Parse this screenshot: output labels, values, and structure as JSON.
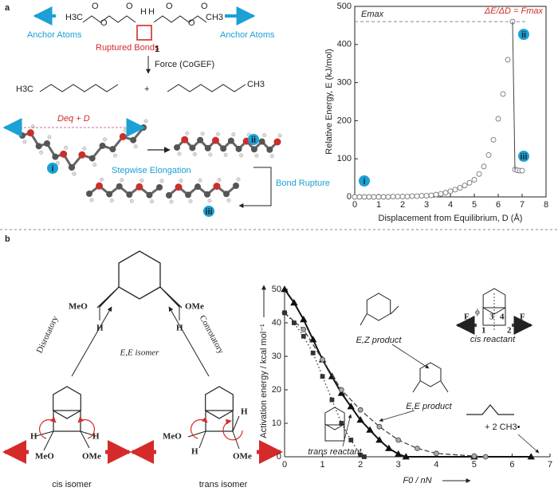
{
  "panel_a": {
    "label": "a",
    "methyl_left": "H3C",
    "methyl_right": "CH3",
    "oxygen": "O",
    "hydrogen": "H",
    "anchor_left": "Anchor Atoms",
    "anchor_right": "Anchor Atoms",
    "ruptured": "Ruptured Bonds",
    "compound": "1",
    "force": "Force (CoGEF)",
    "plus": "+",
    "distance": "Deq + D",
    "elongation": "Stepwise Elongation",
    "rupture": "Bond Rupture",
    "states": [
      "i",
      "ii",
      "iii"
    ]
  },
  "panel_b": {
    "label": "b",
    "substituent_left": "MeO",
    "substituent_right": "OMe",
    "hydrogen": "H",
    "product": "E,E isomer",
    "path_left": "Disrotatory",
    "path_right": "Conrotatory",
    "isomer_left": "cis isomer",
    "isomer_right": "trans isomer"
  },
  "chart_data": [
    {
      "type": "scatter",
      "xlabel": "Displacement from Equilibrium, D (Å)",
      "ylabel": "Relative Energy, E (kJ/mol)",
      "x": [
        0,
        0.2,
        0.4,
        0.6,
        0.8,
        1.0,
        1.2,
        1.4,
        1.6,
        1.8,
        2.0,
        2.2,
        2.4,
        2.6,
        2.8,
        3.0,
        3.2,
        3.4,
        3.6,
        3.8,
        4.0,
        4.2,
        4.4,
        4.6,
        4.8,
        5.0,
        5.2,
        5.4,
        5.6,
        5.8,
        6.0,
        6.2,
        6.4,
        6.6,
        6.7,
        6.8,
        6.9,
        7.0
      ],
      "values": [
        0,
        0,
        0,
        0,
        0,
        0,
        0,
        0,
        1,
        1,
        1,
        1,
        2,
        2,
        3,
        3,
        4,
        6,
        8,
        11,
        15,
        19,
        24,
        30,
        37,
        45,
        60,
        80,
        110,
        150,
        205,
        270,
        360,
        460,
        72,
        70,
        69,
        69
      ],
      "color": "#777777",
      "xlim": [
        0,
        8
      ],
      "ylim": [
        0,
        500
      ],
      "xticks": [
        0,
        1,
        2,
        3,
        4,
        5,
        6,
        7,
        8
      ],
      "yticks": [
        0,
        100,
        200,
        300,
        400,
        500
      ],
      "reference_line": {
        "value": 460,
        "label": "Emax"
      },
      "annotation": "ΔE/ΔD = Fmax"
    },
    {
      "type": "line",
      "xlabel": "F0 / nN",
      "ylabel": "Activation energy / kcal mol⁻¹",
      "xlim": [
        0,
        7
      ],
      "ylim": [
        0,
        50
      ],
      "xticks": [
        0,
        1,
        2,
        3,
        4,
        5,
        6,
        7
      ],
      "yticks": [
        0,
        10,
        20,
        30,
        40,
        50
      ],
      "series": [
        {
          "color": "#111111",
          "dash": "solid",
          "marker": "triangle",
          "x": [
            0,
            0.25,
            0.5,
            0.75,
            1,
            1.25,
            1.5,
            1.75,
            2,
            2.25,
            2.5,
            2.75,
            3,
            3.2,
            5,
            6.5
          ],
          "values": [
            50,
            46,
            41,
            35,
            29,
            24,
            19,
            15,
            11,
            8,
            5,
            2.5,
            0.8,
            0,
            0,
            0
          ]
        },
        {
          "color": "#444444",
          "dash": "dashed",
          "marker": "circle",
          "x": [
            0,
            0.5,
            1,
            1.5,
            2,
            2.5,
            3,
            3.5,
            4,
            5,
            5.3
          ],
          "values": [
            43,
            38,
            29,
            20,
            14,
            9,
            5,
            2.5,
            1,
            0.2,
            0
          ]
        },
        {
          "color": "#333333",
          "dash": "dotted",
          "marker": "square",
          "x": [
            0,
            0.25,
            0.5,
            0.75,
            1,
            1.25,
            1.5,
            1.75,
            2,
            2.1
          ],
          "values": [
            43,
            40,
            36,
            31,
            24,
            17,
            10,
            5,
            0.5,
            0
          ]
        }
      ],
      "annotations": [
        "E,Z product",
        "cis reactant",
        "E,E product",
        "trans reactant",
        "+ 2 CH3•"
      ],
      "force_symbol": "F",
      "atom_numbers": [
        "1",
        "2",
        "3",
        "4"
      ],
      "angle": "ϕ"
    }
  ]
}
